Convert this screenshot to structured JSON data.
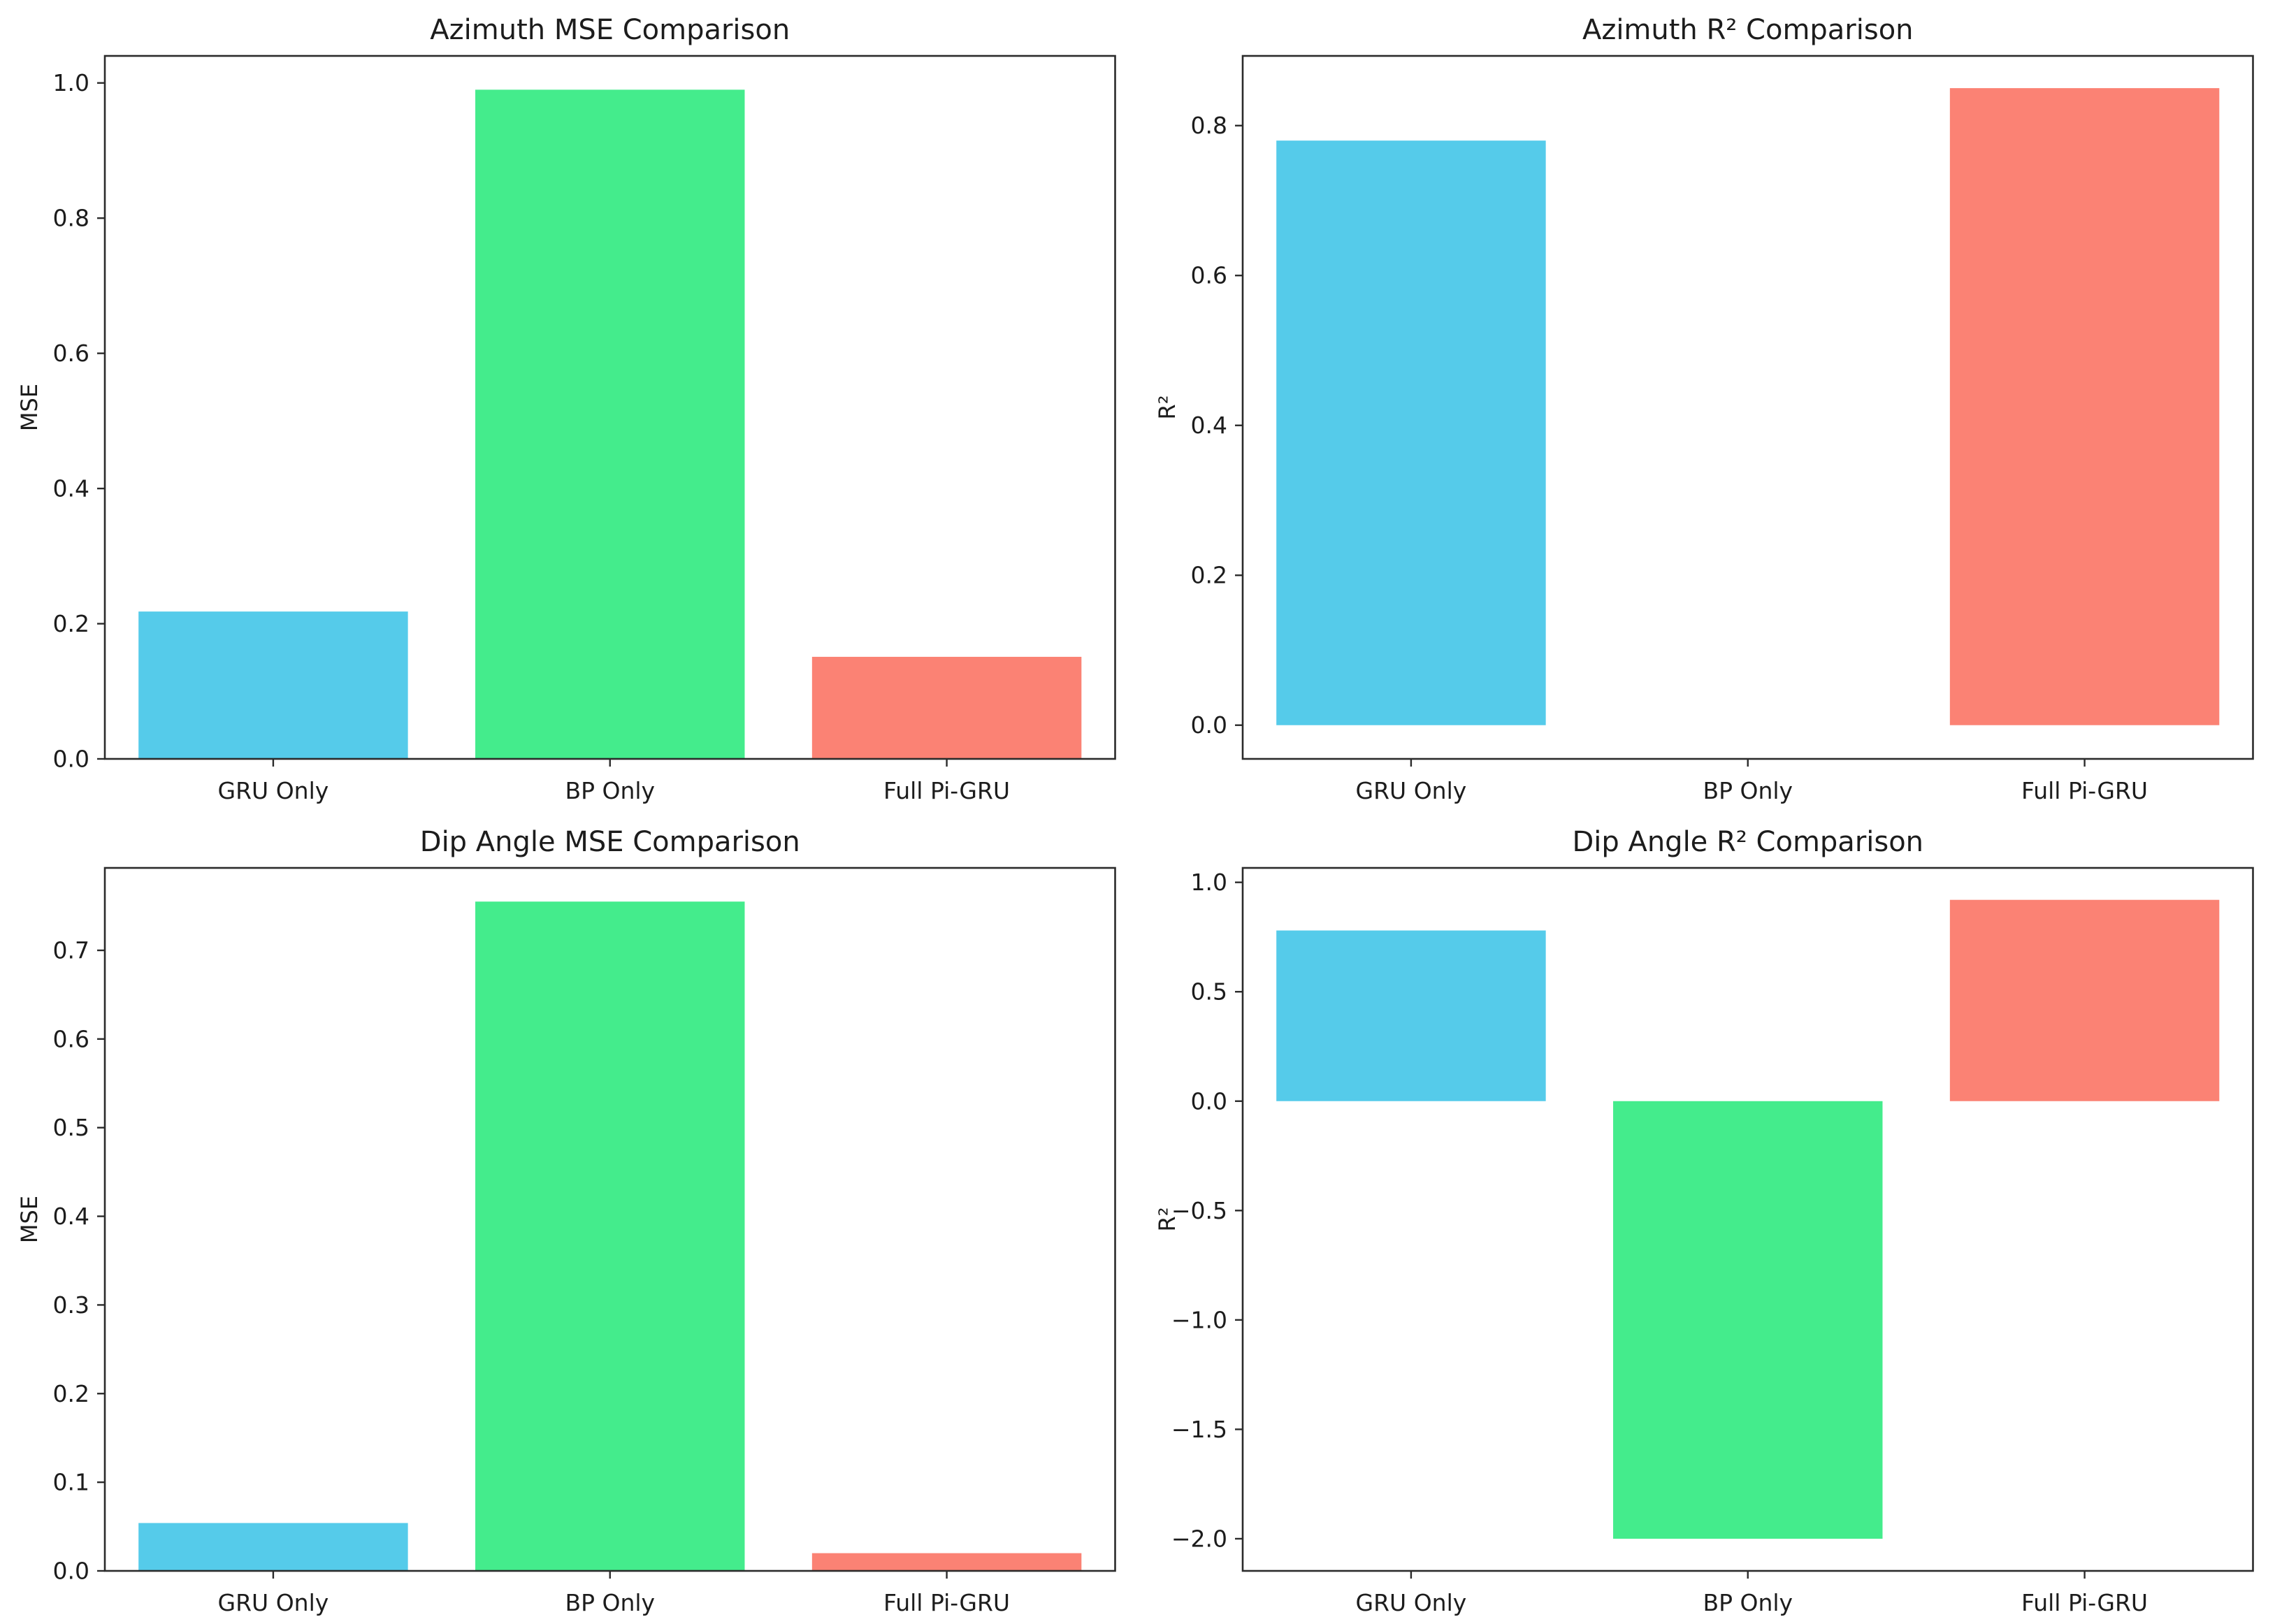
{
  "figure": {
    "background": "#ffffff",
    "text_color": "#1c1c1c",
    "axis_color": "#2b2b2b",
    "models": [
      "GRU Only",
      "BP Only",
      "Full Pi-GRU"
    ],
    "bar_colors": [
      "#55CBEA",
      "#44EC8C",
      "#FB8274"
    ]
  },
  "chart_data": [
    {
      "type": "bar",
      "title": "Azimuth MSE Comparison",
      "xlabel": "",
      "ylabel": "MSE",
      "categories": [
        "GRU Only",
        "BP Only",
        "Full Pi-GRU"
      ],
      "values": [
        0.218,
        0.99,
        0.151
      ],
      "colors": [
        "#55CBEA",
        "#44EC8C",
        "#FB8274"
      ],
      "ylim": [
        0,
        1.04
      ],
      "yticks": [
        0.0,
        0.2,
        0.4,
        0.6,
        0.8,
        1.0
      ],
      "grid": false,
      "legend": "none"
    },
    {
      "type": "bar",
      "title": "Azimuth R² Comparison",
      "xlabel": "",
      "ylabel": "R²",
      "categories": [
        "GRU Only",
        "BP Only",
        "Full Pi-GRU"
      ],
      "values": [
        0.78,
        0.0,
        0.85
      ],
      "colors": [
        "#55CBEA",
        "#44EC8C",
        "#FB8274"
      ],
      "ylim": [
        -0.045,
        0.893
      ],
      "yticks": [
        0.0,
        0.2,
        0.4,
        0.6,
        0.8
      ],
      "grid": false,
      "legend": "none"
    },
    {
      "type": "bar",
      "title": "Dip Angle MSE Comparison",
      "xlabel": "",
      "ylabel": "MSE",
      "categories": [
        "GRU Only",
        "BP Only",
        "Full Pi-GRU"
      ],
      "values": [
        0.054,
        0.755,
        0.02
      ],
      "colors": [
        "#55CBEA",
        "#44EC8C",
        "#FB8274"
      ],
      "ylim": [
        0,
        0.793
      ],
      "yticks": [
        0.0,
        0.1,
        0.2,
        0.3,
        0.4,
        0.5,
        0.6,
        0.7
      ],
      "grid": false,
      "legend": "none"
    },
    {
      "type": "bar",
      "title": "Dip Angle R² Comparison",
      "xlabel": "",
      "ylabel": "R²",
      "categories": [
        "GRU Only",
        "BP Only",
        "Full Pi-GRU"
      ],
      "values": [
        0.78,
        -2.0,
        0.92
      ],
      "colors": [
        "#55CBEA",
        "#44EC8C",
        "#FB8274"
      ],
      "ylim": [
        -2.147,
        1.066
      ],
      "yticks": [
        1.0,
        0.5,
        0.0,
        -0.5,
        -1.0,
        -1.5,
        -2.0
      ],
      "grid": false,
      "legend": "none"
    }
  ]
}
